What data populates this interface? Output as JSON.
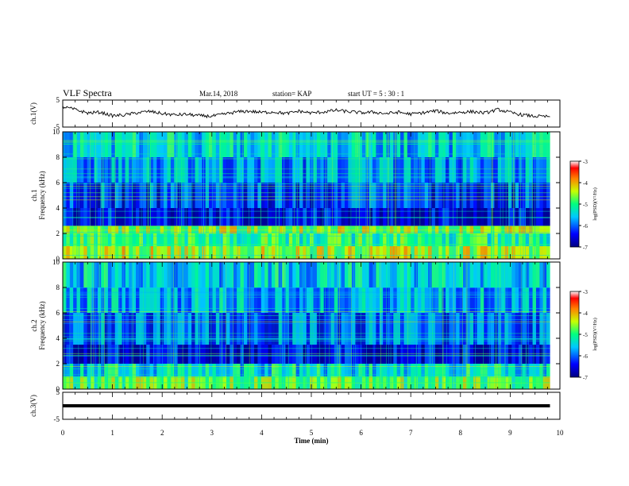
{
  "header": {
    "title": "VLF Spectra",
    "date": "Mar.14, 2018",
    "station": "station= KAP",
    "start": "start  UT =   5 : 30 : 1"
  },
  "chart_data": [
    {
      "type": "line",
      "panel": "ch1-waveform",
      "ylabel": "ch.1(V)",
      "xlim": [
        0,
        10
      ],
      "ylim": [
        -5,
        5
      ],
      "yticks": [
        "5",
        "-5"
      ],
      "x": [
        0,
        0.25,
        0.5,
        0.75,
        1.0,
        1.25,
        1.5,
        1.75,
        2.0,
        2.25,
        2.5,
        2.75,
        3.0,
        3.25,
        3.5,
        3.75,
        4.0,
        4.25,
        4.5,
        4.75,
        5.0,
        5.25,
        5.5,
        5.75,
        6.0,
        6.25,
        6.5,
        6.75,
        7.0,
        7.25,
        7.5,
        7.75,
        8.0,
        8.25,
        8.5,
        8.75,
        9.0,
        9.25,
        9.5,
        9.8
      ],
      "y": [
        2.5,
        1.5,
        0.2,
        0.5,
        -0.8,
        -0.5,
        0.3,
        0.8,
        0.0,
        -0.5,
        -0.3,
        -0.8,
        -1.0,
        -0.2,
        0.6,
        0.9,
        0.4,
        0.6,
        0.0,
        0.9,
        0.2,
        0.6,
        1.2,
        0.7,
        0.3,
        0.5,
        0.0,
        0.5,
        -0.2,
        0.3,
        1.0,
        0.1,
        0.5,
        0.7,
        0.2,
        1.5,
        0.4,
        -0.5,
        -1.0,
        -1.2
      ]
    },
    {
      "type": "heatmap",
      "panel": "ch1-spectrogram",
      "ylabel_line1": "ch.1",
      "ylabel_line2": "Frequency (kHz)",
      "xlim": [
        0,
        10
      ],
      "data_xmax": 9.8,
      "ylim": [
        0,
        10
      ],
      "yticks": [
        "0",
        "2",
        "4",
        "6",
        "8",
        "10"
      ],
      "colorbar": {
        "label": "log(PSD)(V²/Hz)",
        "range": [
          -7,
          -3
        ],
        "ticks": [
          "-3",
          "-4",
          "-5",
          "-6",
          "-7"
        ]
      },
      "rows": [
        {
          "f0": 0,
          "f1": 1,
          "level": -4.5
        },
        {
          "f0": 1,
          "f1": 2,
          "level": -5.0
        },
        {
          "f0": 2,
          "f1": 2.6,
          "level": -4.6
        },
        {
          "f0": 2.6,
          "f1": 4.0,
          "level": -6.6
        },
        {
          "f0": 4.0,
          "f1": 6.0,
          "level": -6.2
        },
        {
          "f0": 6.0,
          "f1": 8.0,
          "level": -5.8
        },
        {
          "f0": 8.0,
          "f1": 10.0,
          "level": -5.5
        }
      ]
    },
    {
      "type": "heatmap",
      "panel": "ch2-spectrogram",
      "ylabel_line1": "ch.2",
      "ylabel_line2": "Frequency (kHz)",
      "xlim": [
        0,
        10
      ],
      "data_xmax": 9.8,
      "ylim": [
        0,
        10
      ],
      "yticks": [
        "0",
        "2",
        "4",
        "6",
        "8",
        "10"
      ],
      "colorbar": {
        "label": "log(PSD)(V²/Hz)",
        "range": [
          -7,
          -3
        ],
        "ticks": [
          "-3",
          "-4",
          "-5",
          "-6",
          "-7"
        ]
      },
      "rows": [
        {
          "f0": 0,
          "f1": 1,
          "level": -4.8
        },
        {
          "f0": 1,
          "f1": 2,
          "level": -5.4
        },
        {
          "f0": 2,
          "f1": 3.5,
          "level": -6.6
        },
        {
          "f0": 3.5,
          "f1": 6.0,
          "level": -6.0
        },
        {
          "f0": 6.0,
          "f1": 8.0,
          "level": -5.7
        },
        {
          "f0": 8.0,
          "f1": 10.0,
          "level": -5.5
        }
      ]
    },
    {
      "type": "line",
      "panel": "ch3-waveform",
      "ylabel": "ch.3(V)",
      "xlim": [
        0,
        10
      ],
      "ylim": [
        -5,
        5
      ],
      "yticks": [
        "5",
        "-5"
      ],
      "x": [
        0,
        9.8
      ],
      "y": [
        0,
        0
      ]
    }
  ],
  "xaxis": {
    "label": "Time (min)",
    "ticks": [
      "0",
      "1",
      "2",
      "3",
      "4",
      "5",
      "6",
      "7",
      "8",
      "9",
      "10"
    ]
  }
}
